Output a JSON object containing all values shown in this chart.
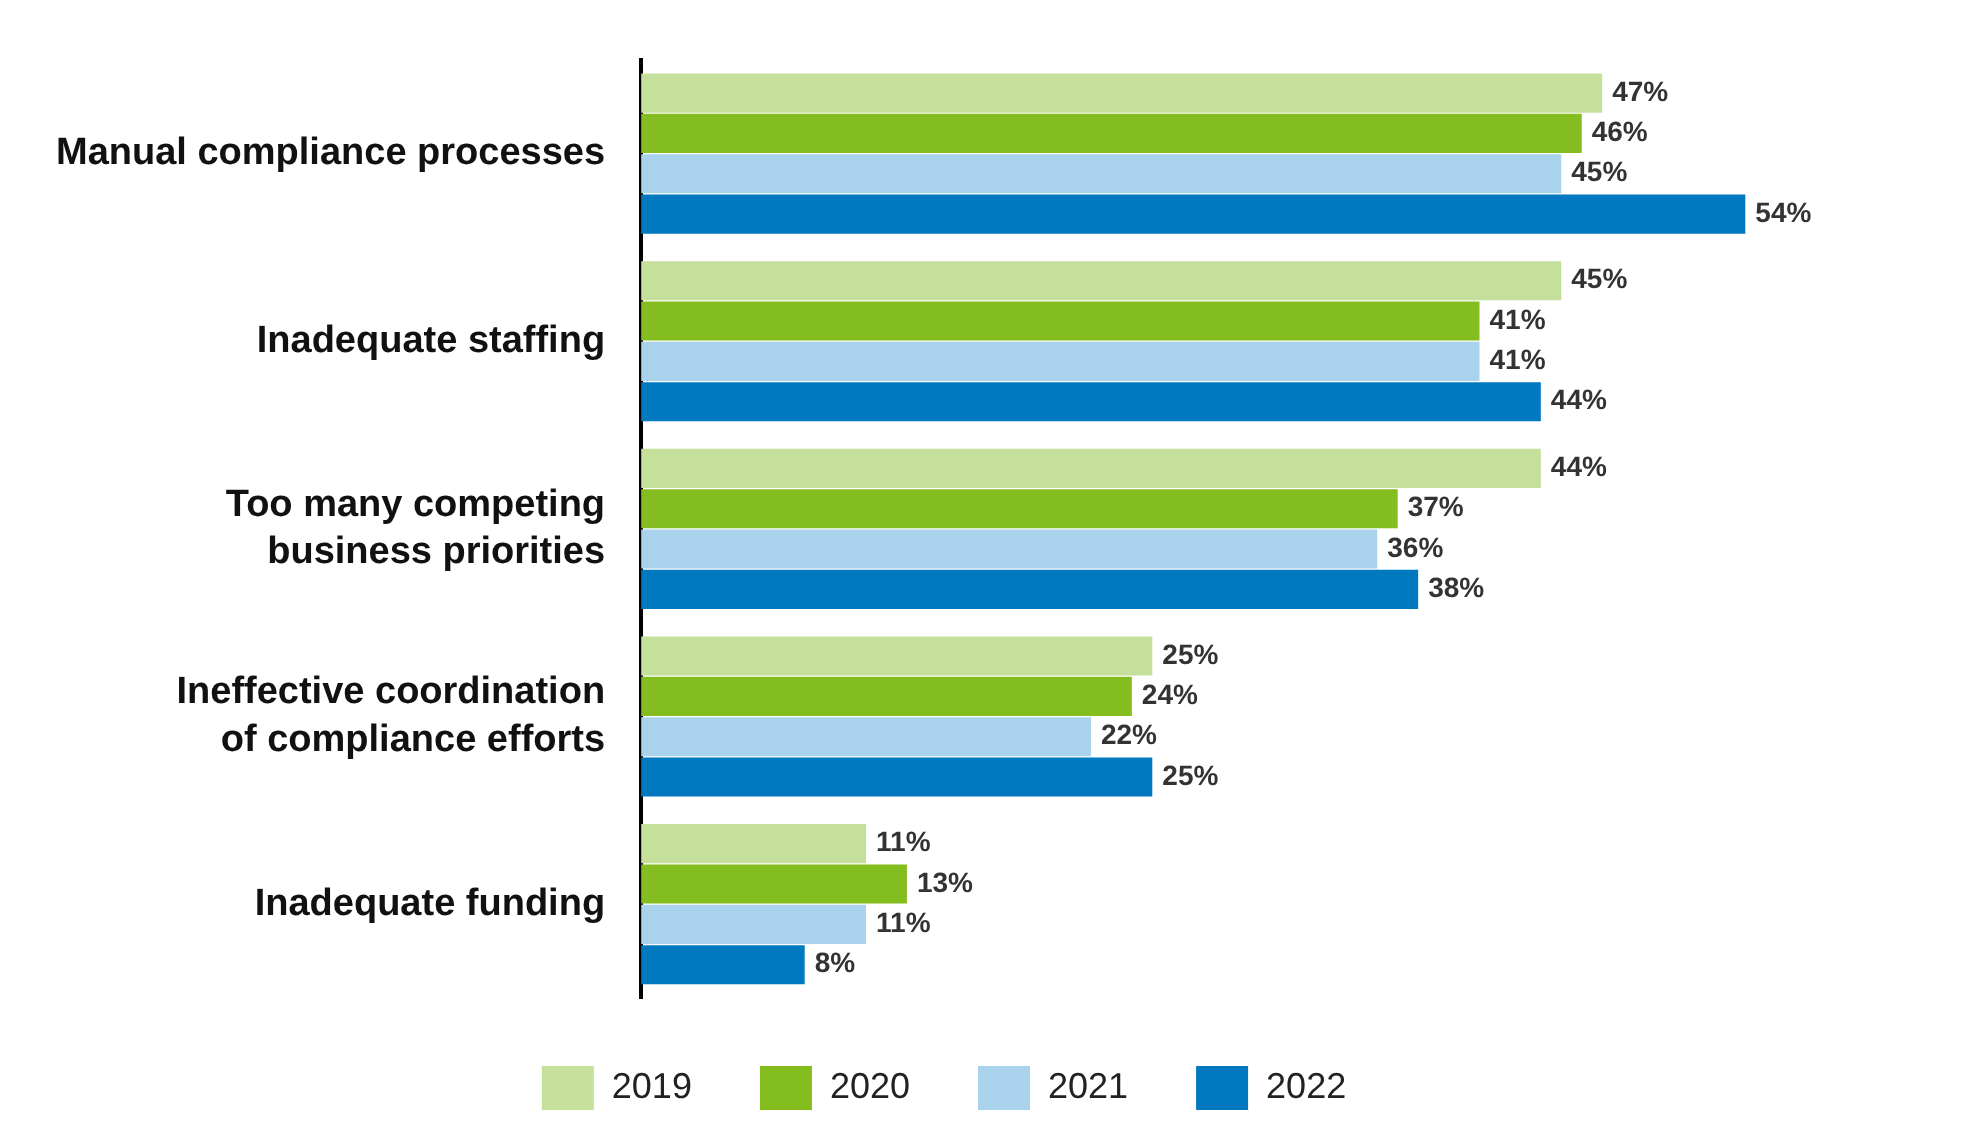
{
  "chart_data": {
    "type": "bar",
    "orientation": "horizontal",
    "categories": [
      "Manual compliance processes",
      "Inadequate staffing",
      "Too many competing business priorities",
      "Ineffective coordination of compliance efforts",
      "Inadequate funding"
    ],
    "series": [
      {
        "name": "2019",
        "color": "#c5e09b",
        "values": [
          47,
          45,
          44,
          25,
          11
        ],
        "value_labels": [
          "47%",
          "45%",
          "44%",
          "25%",
          "11%"
        ]
      },
      {
        "name": "2020",
        "color": "#84bd1f",
        "values": [
          46,
          41,
          37,
          24,
          13
        ],
        "value_labels": [
          "46%",
          "41%",
          "37%",
          "24%",
          "13%"
        ]
      },
      {
        "name": "2021",
        "color": "#a9d3ec",
        "values": [
          45,
          41,
          36,
          22,
          11
        ],
        "value_labels": [
          "45%",
          "41%",
          "36%",
          "22%",
          "11%"
        ]
      },
      {
        "name": "2022",
        "color": "#0079c1",
        "values": [
          54,
          44,
          38,
          25,
          8
        ],
        "value_labels": [
          "54%",
          "44%",
          "38%",
          "25%",
          "8%"
        ]
      }
    ],
    "tick_labels": "y",
    "grid": false,
    "legend": "bottom"
  }
}
